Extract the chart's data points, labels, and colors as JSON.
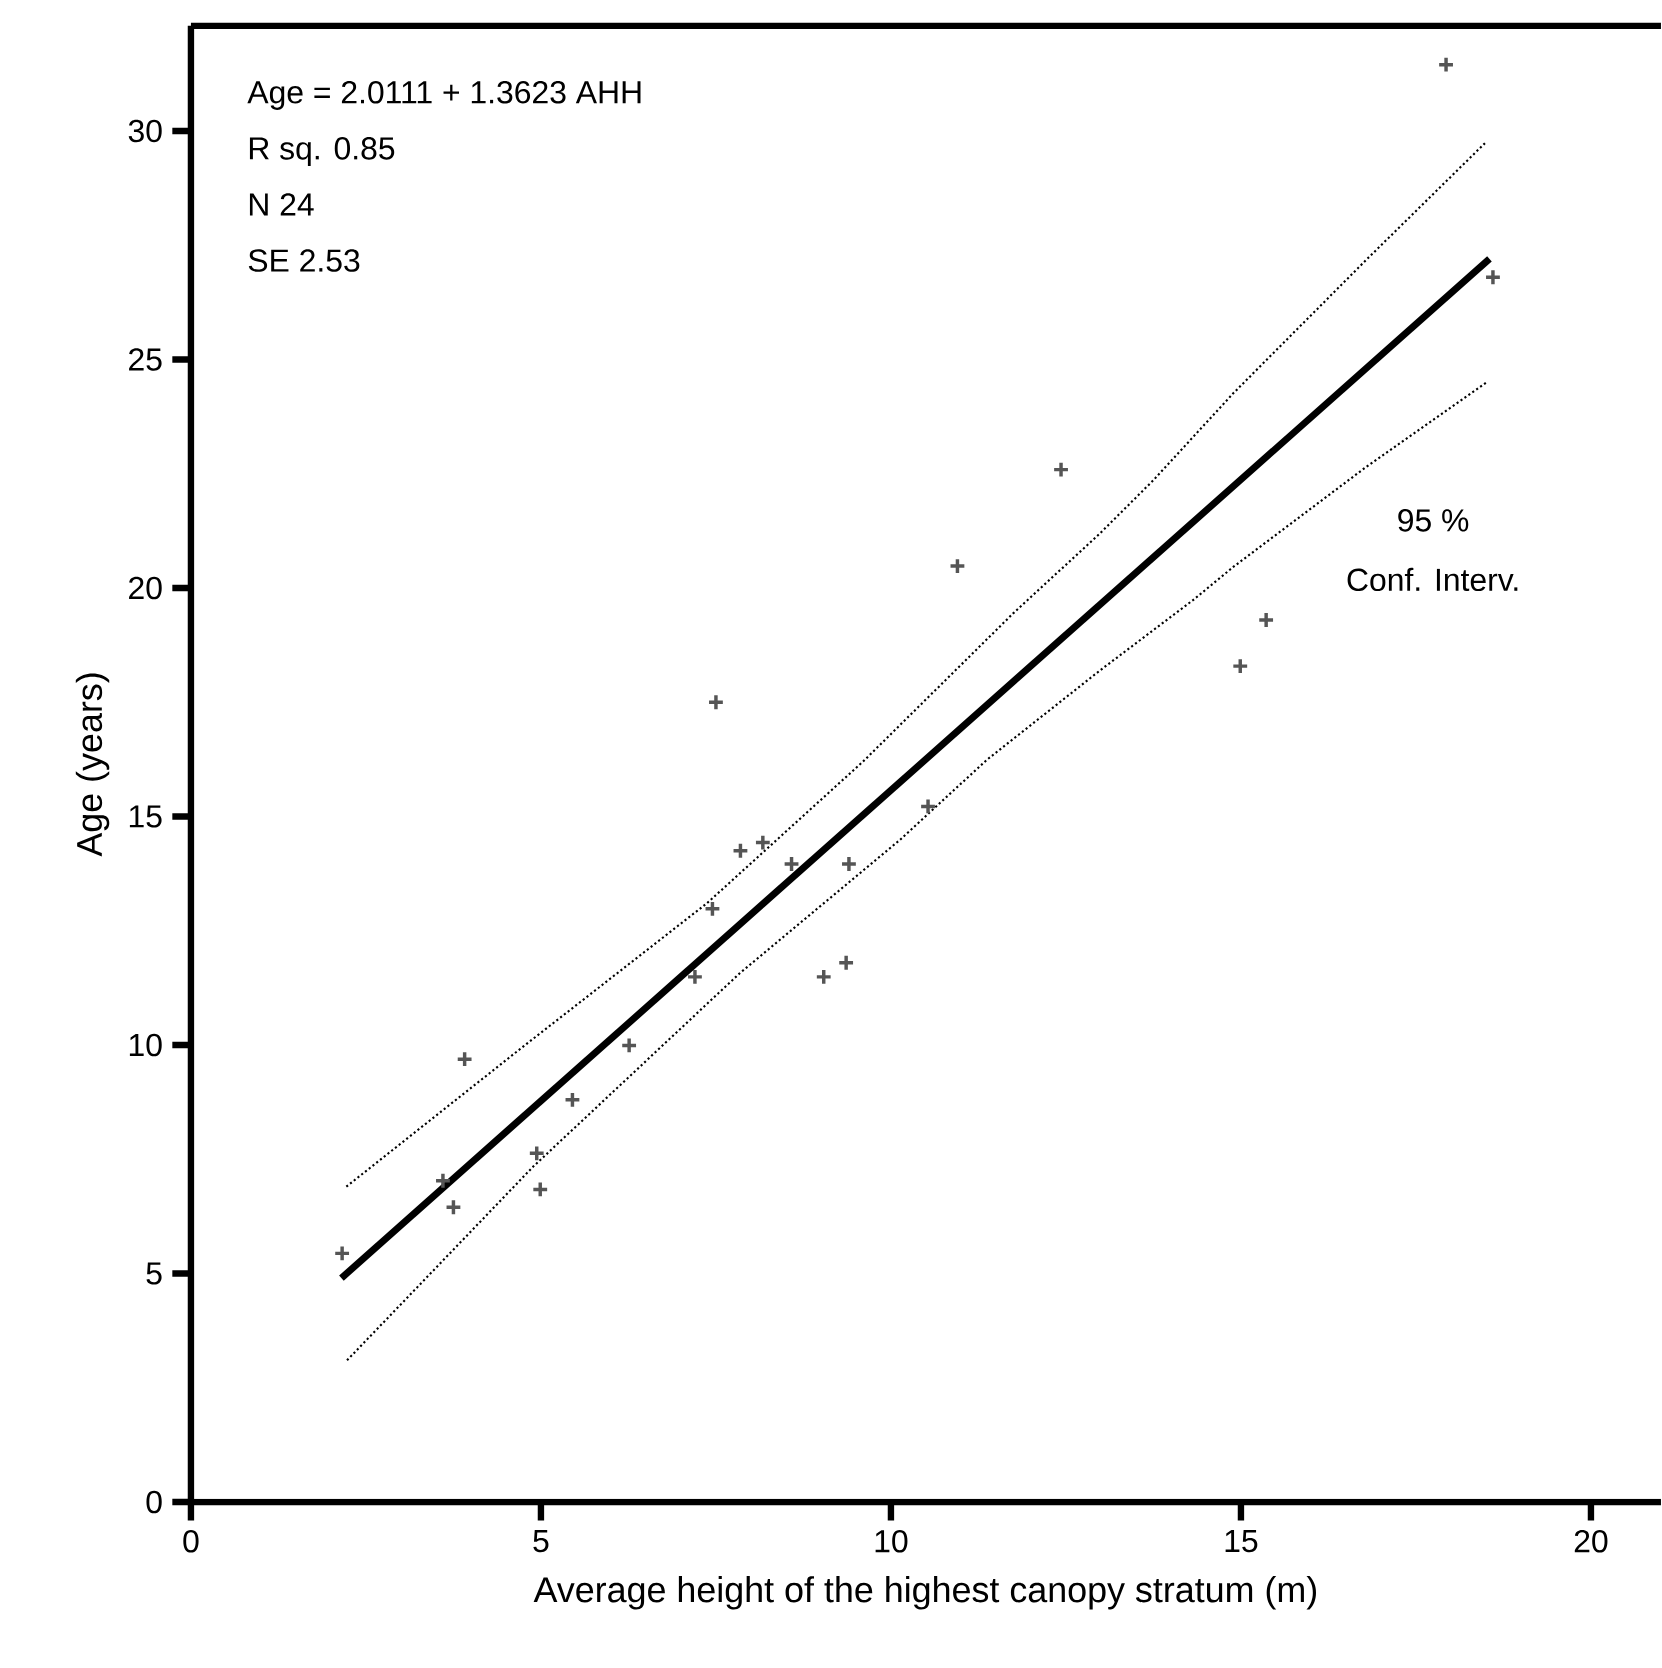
{
  "chart_data": {
    "type": "scatter",
    "xlabel": "Average height of the highest canopy stratum (m)",
    "ylabel": "Age (years)",
    "xlim": [
      0,
      21
    ],
    "ylim": [
      0,
      32.3
    ],
    "xticks": [
      0,
      5,
      10,
      15,
      20
    ],
    "yticks": [
      0,
      5,
      10,
      15,
      20,
      25,
      30
    ],
    "grid": false,
    "legend": false,
    "series": [
      {
        "color": "#555555",
        "marker": "cross",
        "x": [
          2.16,
          3.6,
          3.75,
          3.91,
          4.94,
          4.99,
          5.45,
          6.26,
          7.2,
          7.45,
          7.85,
          8.17,
          8.58,
          9.04,
          9.36,
          9.4,
          7.5,
          10.95,
          10.53,
          12.43,
          17.93,
          18.6,
          15.36,
          14.99
        ],
        "values": [
          5.44,
          7.03,
          6.45,
          9.69,
          7.63,
          6.84,
          8.8,
          9.99,
          11.49,
          12.98,
          14.25,
          14.43,
          13.96,
          11.49,
          11.8,
          13.96,
          17.5,
          20.48,
          15.22,
          22.59,
          31.45,
          26.8,
          19.3,
          18.29
        ]
      },
      {
        "type": "line",
        "color": "#000000",
        "line_style": "solid",
        "x": [
          2.15,
          18.55
        ],
        "values": [
          4.9,
          27.2
        ]
      },
      {
        "type": "line",
        "color": "#000000",
        "line_style": "dotted",
        "x": [
          2.22,
          4.75,
          7.37,
          9.6,
          11.75,
          12.99,
          13.75,
          14.89,
          16.79,
          18.51
        ],
        "values": [
          6.9,
          9.97,
          13.1,
          16.2,
          19.45,
          21.2,
          22.36,
          24.26,
          27.18,
          29.77
        ]
      },
      {
        "type": "line",
        "color": "#000000",
        "line_style": "dotted",
        "x": [
          2.23,
          4.89,
          7.84,
          10.13,
          11.37,
          12.99,
          14.32,
          14.89,
          16.79,
          18.51
        ],
        "values": [
          3.1,
          7.34,
          11.57,
          14.49,
          16.24,
          18.2,
          19.74,
          20.46,
          22.65,
          24.5
        ]
      }
    ],
    "annotations": [
      "Age = 2.0111 + 1.3623 AHH",
      "R sq.  0.85",
      "N      24",
      "SE     2.53",
      "95 %",
      "Conf. Interv."
    ]
  }
}
